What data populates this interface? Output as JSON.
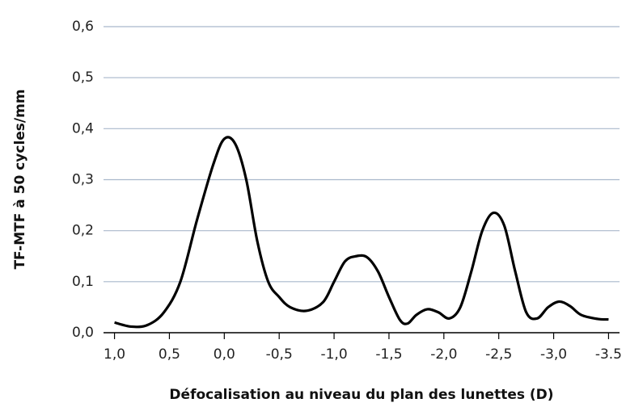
{
  "chart_data": {
    "type": "line",
    "xlabel": "Défocalisation au niveau du plan des lunettes (D)",
    "ylabel": "TF-MTF à 50 cycles/mm",
    "x": [
      1.0,
      0.85,
      0.7,
      0.55,
      0.4,
      0.25,
      0.1,
      0.0,
      -0.1,
      -0.2,
      -0.3,
      -0.4,
      -0.5,
      -0.6,
      -0.75,
      -0.9,
      -1.0,
      -1.1,
      -1.2,
      -1.3,
      -1.4,
      -1.5,
      -1.6,
      -1.67,
      -1.75,
      -1.85,
      -1.95,
      -2.05,
      -2.15,
      -2.25,
      -2.35,
      -2.45,
      -2.55,
      -2.65,
      -2.75,
      -2.85,
      -2.95,
      -3.05,
      -3.15,
      -3.25,
      -3.4,
      -3.5
    ],
    "series": [
      {
        "color": "#000000",
        "values": [
          0.02,
          0.012,
          0.015,
          0.04,
          0.1,
          0.22,
          0.33,
          0.38,
          0.37,
          0.3,
          0.18,
          0.1,
          0.07,
          0.05,
          0.043,
          0.06,
          0.1,
          0.14,
          0.15,
          0.148,
          0.12,
          0.07,
          0.025,
          0.018,
          0.035,
          0.046,
          0.04,
          0.028,
          0.05,
          0.12,
          0.2,
          0.235,
          0.21,
          0.12,
          0.04,
          0.028,
          0.05,
          0.061,
          0.052,
          0.035,
          0.027,
          0.026
        ]
      }
    ],
    "xlim": [
      1.1,
      -3.6
    ],
    "xticks": [
      {
        "value": 1.0,
        "label": "1,0"
      },
      {
        "value": 0.5,
        "label": "0,5"
      },
      {
        "value": 0.0,
        "label": "0,0"
      },
      {
        "value": -0.5,
        "label": "-0,5"
      },
      {
        "value": -1.0,
        "label": "-1,0"
      },
      {
        "value": -1.5,
        "label": "-1,5"
      },
      {
        "value": -2.0,
        "label": "-2,0"
      },
      {
        "value": -2.5,
        "label": "-2,5"
      },
      {
        "value": -3.0,
        "label": "-3,0"
      },
      {
        "value": -3.5,
        "label": "-3.5"
      }
    ],
    "ylim": [
      0,
      0.6
    ],
    "yticks": [
      {
        "value": 0.0,
        "label": "0,0"
      },
      {
        "value": 0.1,
        "label": "0,1"
      },
      {
        "value": 0.2,
        "label": "0,2"
      },
      {
        "value": 0.3,
        "label": "0,3"
      },
      {
        "value": 0.4,
        "label": "0,4"
      },
      {
        "value": 0.5,
        "label": "0,5"
      },
      {
        "value": 0.6,
        "label": "0,6"
      }
    ],
    "grid": true,
    "grid_color": "#a9b8cc"
  }
}
